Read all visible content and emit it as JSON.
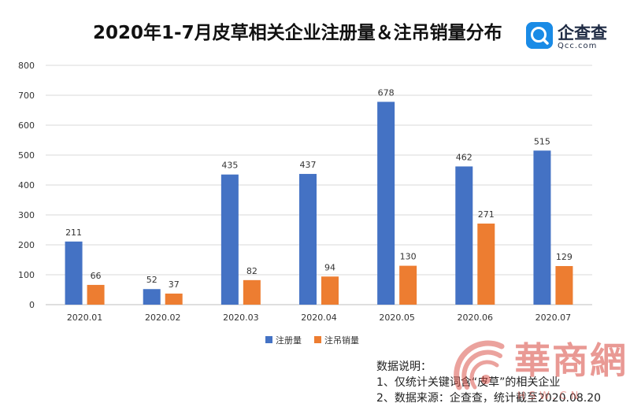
{
  "title": "2020年1-7月皮草相关企业注册量＆注吊销量分布",
  "logo": {
    "name": "企查查",
    "domain": "Qcc.com"
  },
  "colors": {
    "registered": "#4472C4",
    "revoked": "#ED7D31",
    "grid": "#d9d9d9",
    "axis_text": "#333333"
  },
  "chart_data": {
    "type": "bar",
    "title": "2020年1-7月皮草相关企业注册量＆注吊销量分布",
    "categories": [
      "2020.01",
      "2020.02",
      "2020.03",
      "2020.04",
      "2020.05",
      "2020.06",
      "2020.07"
    ],
    "series": [
      {
        "name": "注册量",
        "values": [
          211,
          52,
          435,
          437,
          678,
          462,
          515
        ]
      },
      {
        "name": "注吊销量",
        "values": [
          66,
          37,
          82,
          94,
          130,
          271,
          129
        ]
      }
    ],
    "ylim": [
      0,
      800
    ],
    "yticks": [
      0,
      100,
      200,
      300,
      400,
      500,
      600,
      700,
      800
    ],
    "xlabel": "",
    "ylabel": "",
    "grid": true,
    "legend_position": "bottom"
  },
  "notes": {
    "heading": "数据说明：",
    "line1": "1、仅统计关键词含“皮草”的相关企业",
    "line2": "2、数据来源：企查查，统计截至2020.08.20"
  },
  "watermark": {
    "text": "華商網",
    "url": "HSW.CN"
  }
}
